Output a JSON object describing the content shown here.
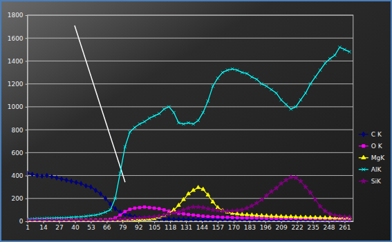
{
  "chart_data": {
    "type": "line",
    "x": [
      1,
      5,
      9,
      13,
      17,
      21,
      25,
      29,
      33,
      37,
      41,
      45,
      49,
      53,
      57,
      61,
      65,
      69,
      73,
      77,
      81,
      85,
      89,
      93,
      97,
      101,
      105,
      109,
      113,
      117,
      121,
      125,
      129,
      133,
      137,
      141,
      145,
      149,
      153,
      157,
      161,
      165,
      169,
      173,
      177,
      181,
      185,
      189,
      193,
      197,
      201,
      205,
      209,
      213,
      217,
      221,
      225,
      229,
      233,
      237,
      241,
      245,
      249,
      253,
      257,
      261,
      265
    ],
    "xlim": [
      1,
      268
    ],
    "xticks": [
      1,
      14,
      27,
      40,
      53,
      66,
      79,
      92,
      105,
      118,
      131,
      144,
      157,
      170,
      183,
      196,
      209,
      222,
      235,
      248,
      261
    ],
    "ylim": [
      0,
      1800
    ],
    "yticks": [
      0,
      200,
      400,
      600,
      800,
      1000,
      1200,
      1400,
      1600,
      1800
    ],
    "grid": true,
    "legend": "right",
    "series": [
      {
        "name": "C K",
        "color": "#000080",
        "marker": "diamond",
        "values": [
          420,
          410,
          400,
          395,
          400,
          390,
          380,
          370,
          360,
          350,
          340,
          330,
          310,
          300,
          270,
          240,
          200,
          150,
          110,
          80,
          60,
          50,
          40,
          35,
          30,
          28,
          25,
          22,
          20,
          20,
          18,
          18,
          17,
          17,
          16,
          16,
          15,
          15,
          15,
          15,
          15,
          15,
          15,
          14,
          14,
          14,
          14,
          14,
          14,
          14,
          13,
          13,
          13,
          13,
          13,
          13,
          13,
          12,
          12,
          12,
          12,
          12,
          12,
          12,
          12,
          12,
          12
        ]
      },
      {
        "name": "O K",
        "color": "#ff00ff",
        "marker": "square",
        "values": [
          8,
          8,
          8,
          8,
          8,
          8,
          8,
          8,
          8,
          8,
          8,
          8,
          8,
          8,
          8,
          10,
          12,
          18,
          30,
          55,
          85,
          105,
          115,
          120,
          125,
          120,
          115,
          110,
          100,
          90,
          80,
          70,
          65,
          60,
          55,
          50,
          45,
          42,
          40,
          38,
          35,
          35,
          33,
          32,
          30,
          30,
          30,
          30,
          29,
          28,
          28,
          27,
          27,
          26,
          26,
          25,
          25,
          24,
          24,
          23,
          23,
          22,
          22,
          21,
          21,
          20,
          20
        ]
      },
      {
        "name": "MgK",
        "color": "#ffff00",
        "marker": "triangle",
        "values": [
          10,
          10,
          10,
          10,
          10,
          10,
          10,
          10,
          10,
          10,
          10,
          10,
          10,
          10,
          10,
          10,
          10,
          10,
          10,
          10,
          12,
          14,
          15,
          16,
          18,
          20,
          25,
          35,
          50,
          70,
          100,
          140,
          190,
          240,
          270,
          295,
          280,
          230,
          170,
          120,
          95,
          80,
          70,
          65,
          60,
          58,
          55,
          52,
          50,
          48,
          45,
          45,
          42,
          40,
          40,
          38,
          36,
          35,
          34,
          33,
          32,
          31,
          30,
          30,
          30,
          30,
          30
        ]
      },
      {
        "name": "AlK",
        "color": "#00ffff",
        "marker": "x",
        "values": [
          20,
          22,
          25,
          25,
          28,
          28,
          30,
          30,
          32,
          35,
          38,
          40,
          45,
          50,
          55,
          65,
          80,
          100,
          200,
          420,
          650,
          780,
          820,
          850,
          870,
          900,
          920,
          940,
          980,
          1000,
          950,
          860,
          850,
          860,
          850,
          880,
          950,
          1050,
          1180,
          1250,
          1300,
          1320,
          1330,
          1320,
          1300,
          1290,
          1260,
          1240,
          1200,
          1180,
          1150,
          1120,
          1060,
          1020,
          980,
          1000,
          1060,
          1120,
          1200,
          1260,
          1320,
          1380,
          1420,
          1450,
          1520,
          1500,
          1480
        ]
      },
      {
        "name": "SiK",
        "color": "#800080",
        "marker": "star",
        "values": [
          10,
          10,
          10,
          10,
          10,
          10,
          10,
          10,
          10,
          10,
          10,
          10,
          10,
          10,
          10,
          10,
          10,
          10,
          12,
          15,
          18,
          20,
          25,
          30,
          32,
          35,
          40,
          45,
          55,
          65,
          75,
          85,
          100,
          115,
          125,
          125,
          120,
          110,
          100,
          95,
          90,
          88,
          90,
          95,
          100,
          115,
          135,
          160,
          190,
          225,
          260,
          290,
          330,
          360,
          385,
          380,
          350,
          300,
          250,
          190,
          130,
          90,
          65,
          50,
          45,
          40,
          38
        ]
      }
    ]
  }
}
